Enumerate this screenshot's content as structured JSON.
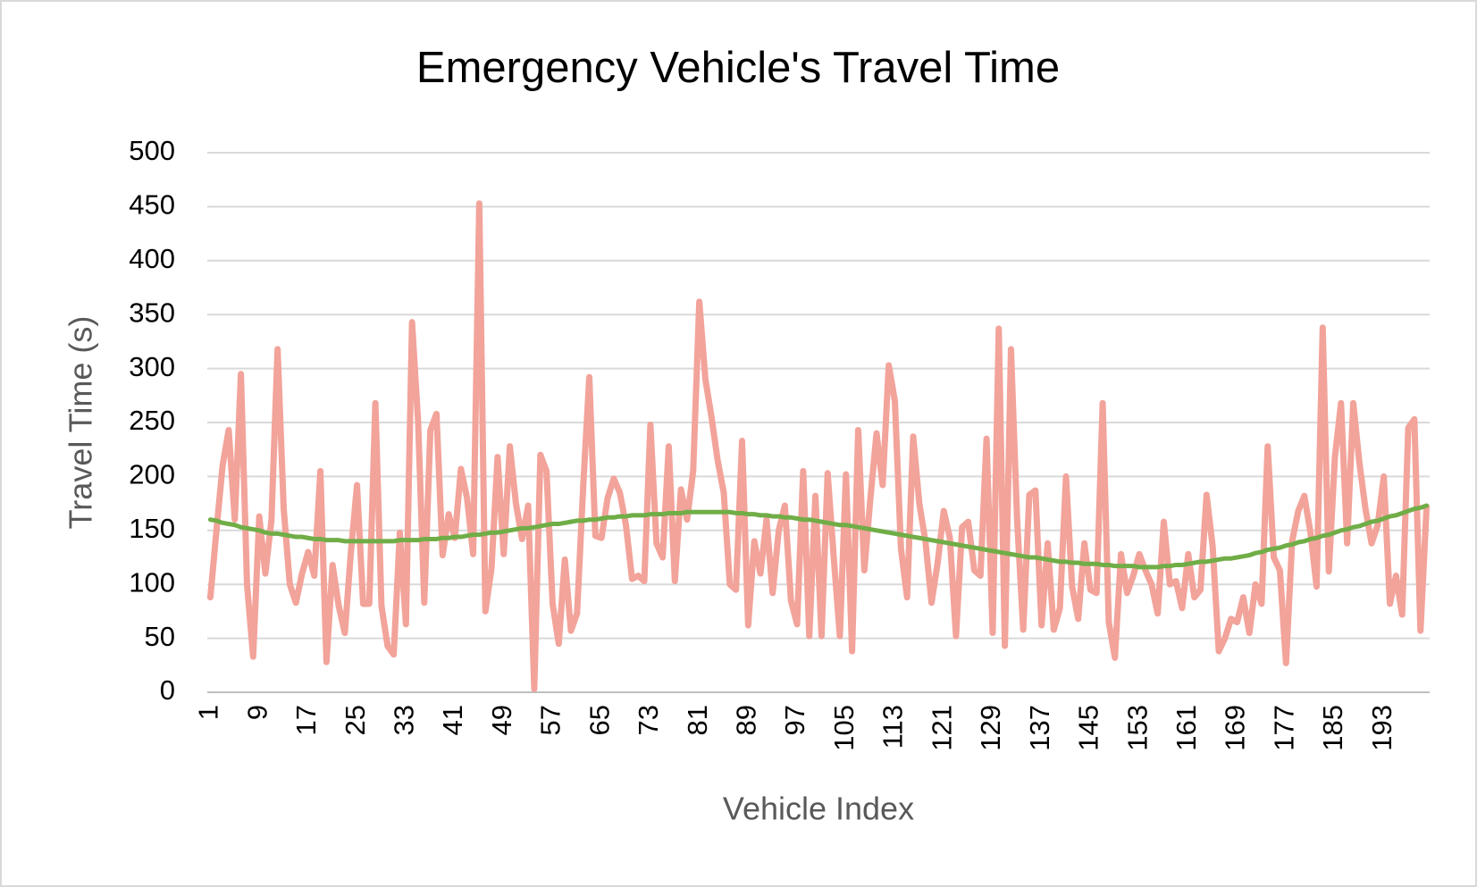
{
  "chart_data": {
    "type": "line",
    "title": "Emergency Vehicle's Travel Time",
    "x_label": "Vehicle Index",
    "y_label": "Travel Time (s)",
    "ylim": [
      0,
      500
    ],
    "yticks": [
      0,
      50,
      100,
      150,
      200,
      250,
      300,
      350,
      400,
      450,
      500
    ],
    "grid": true,
    "categories": [
      1,
      null,
      null,
      null,
      null,
      null,
      null,
      null,
      9,
      null,
      null,
      null,
      null,
      null,
      null,
      null,
      17,
      null,
      null,
      null,
      null,
      null,
      null,
      null,
      25,
      null,
      null,
      null,
      null,
      null,
      null,
      null,
      33,
      null,
      null,
      null,
      null,
      null,
      null,
      null,
      41,
      null,
      null,
      null,
      null,
      null,
      null,
      null,
      49,
      null,
      null,
      null,
      null,
      null,
      null,
      null,
      57,
      null,
      null,
      null,
      null,
      null,
      null,
      null,
      65,
      null,
      null,
      null,
      null,
      null,
      null,
      null,
      73,
      null,
      null,
      null,
      null,
      null,
      null,
      null,
      81,
      null,
      null,
      null,
      null,
      null,
      null,
      null,
      89,
      null,
      null,
      null,
      null,
      null,
      null,
      null,
      97,
      null,
      null,
      null,
      null,
      null,
      null,
      null,
      105,
      null,
      null,
      null,
      null,
      null,
      null,
      null,
      113,
      null,
      null,
      null,
      null,
      null,
      null,
      null,
      121,
      null,
      null,
      null,
      null,
      null,
      null,
      null,
      129,
      null,
      null,
      null,
      null,
      null,
      null,
      null,
      137,
      null,
      null,
      null,
      null,
      null,
      null,
      null,
      145,
      null,
      null,
      null,
      null,
      null,
      null,
      null,
      153,
      null,
      null,
      null,
      null,
      null,
      null,
      null,
      161,
      null,
      null,
      null,
      null,
      null,
      null,
      null,
      169,
      null,
      null,
      null,
      null,
      null,
      null,
      null,
      177,
      null,
      null,
      null,
      null,
      null,
      null,
      null,
      185,
      null,
      null,
      null,
      null,
      null,
      null,
      null,
      193,
      null,
      null,
      null,
      null,
      null,
      null,
      null
    ],
    "series": [
      {
        "color": "#f2a39a",
        "width": 7,
        "values": [
          88,
          150,
          210,
          243,
          160,
          295,
          100,
          33,
          163,
          110,
          160,
          318,
          170,
          100,
          83,
          110,
          130,
          108,
          205,
          28,
          118,
          80,
          55,
          130,
          192,
          82,
          82,
          268,
          80,
          43,
          35,
          148,
          63,
          343,
          250,
          83,
          243,
          258,
          127,
          165,
          143,
          207,
          180,
          128,
          453,
          75,
          115,
          218,
          128,
          228,
          175,
          142,
          173,
          3,
          220,
          205,
          82,
          45,
          123,
          57,
          73,
          190,
          292,
          145,
          143,
          180,
          198,
          185,
          155,
          105,
          108,
          103,
          248,
          138,
          125,
          228,
          103,
          188,
          160,
          205,
          362,
          290,
          255,
          215,
          185,
          100,
          95,
          233,
          62,
          140,
          110,
          160,
          92,
          150,
          173,
          85,
          63,
          205,
          52,
          182,
          52,
          203,
          125,
          52,
          202,
          38,
          243,
          113,
          180,
          240,
          192,
          303,
          270,
          133,
          88,
          237,
          175,
          140,
          83,
          120,
          168,
          143,
          52,
          153,
          158,
          113,
          108,
          235,
          55,
          337,
          43,
          318,
          160,
          58,
          183,
          187,
          62,
          138,
          58,
          78,
          200,
          98,
          68,
          138,
          95,
          92,
          268,
          65,
          32,
          128,
          92,
          108,
          128,
          113,
          100,
          73,
          158,
          100,
          103,
          78,
          128,
          88,
          95,
          183,
          135,
          38,
          50,
          68,
          65,
          88,
          55,
          100,
          82,
          228,
          125,
          113,
          27,
          140,
          168,
          182,
          148,
          98,
          338,
          112,
          218,
          268,
          138,
          268,
          213,
          170,
          138,
          155,
          200,
          82,
          108,
          72,
          245,
          253,
          57,
          172
        ]
      },
      {
        "color": "#70ad47",
        "width": 5,
        "values": [
          160,
          159,
          157,
          156,
          155,
          153,
          152,
          151,
          150,
          148,
          147,
          147,
          146,
          145,
          144,
          144,
          143,
          142,
          142,
          141,
          141,
          141,
          140,
          140,
          140,
          140,
          140,
          140,
          140,
          140,
          140,
          141,
          141,
          141,
          141,
          142,
          142,
          142,
          143,
          143,
          144,
          144,
          145,
          146,
          146,
          147,
          148,
          148,
          149,
          150,
          151,
          152,
          152,
          153,
          154,
          155,
          156,
          156,
          157,
          158,
          159,
          159,
          160,
          160,
          161,
          162,
          162,
          163,
          163,
          164,
          164,
          164,
          165,
          165,
          165,
          166,
          166,
          166,
          167,
          167,
          167,
          167,
          167,
          167,
          167,
          167,
          166,
          166,
          165,
          165,
          164,
          164,
          163,
          163,
          162,
          162,
          161,
          160,
          160,
          159,
          158,
          157,
          156,
          155,
          155,
          154,
          153,
          152,
          151,
          150,
          149,
          148,
          147,
          146,
          145,
          144,
          143,
          142,
          141,
          140,
          139,
          138,
          137,
          136,
          135,
          134,
          133,
          132,
          131,
          130,
          129,
          128,
          127,
          126,
          125,
          125,
          124,
          123,
          122,
          121,
          121,
          120,
          120,
          119,
          119,
          119,
          118,
          118,
          117,
          117,
          117,
          117,
          116,
          116,
          116,
          116,
          117,
          117,
          118,
          118,
          119,
          120,
          121,
          121,
          122,
          123,
          124,
          124,
          125,
          126,
          127,
          129,
          130,
          132,
          133,
          134,
          136,
          137,
          139,
          140,
          142,
          143,
          145,
          146,
          148,
          150,
          151,
          153,
          154,
          156,
          158,
          159,
          161,
          163,
          164,
          166,
          168,
          170,
          171,
          173
        ]
      }
    ]
  }
}
